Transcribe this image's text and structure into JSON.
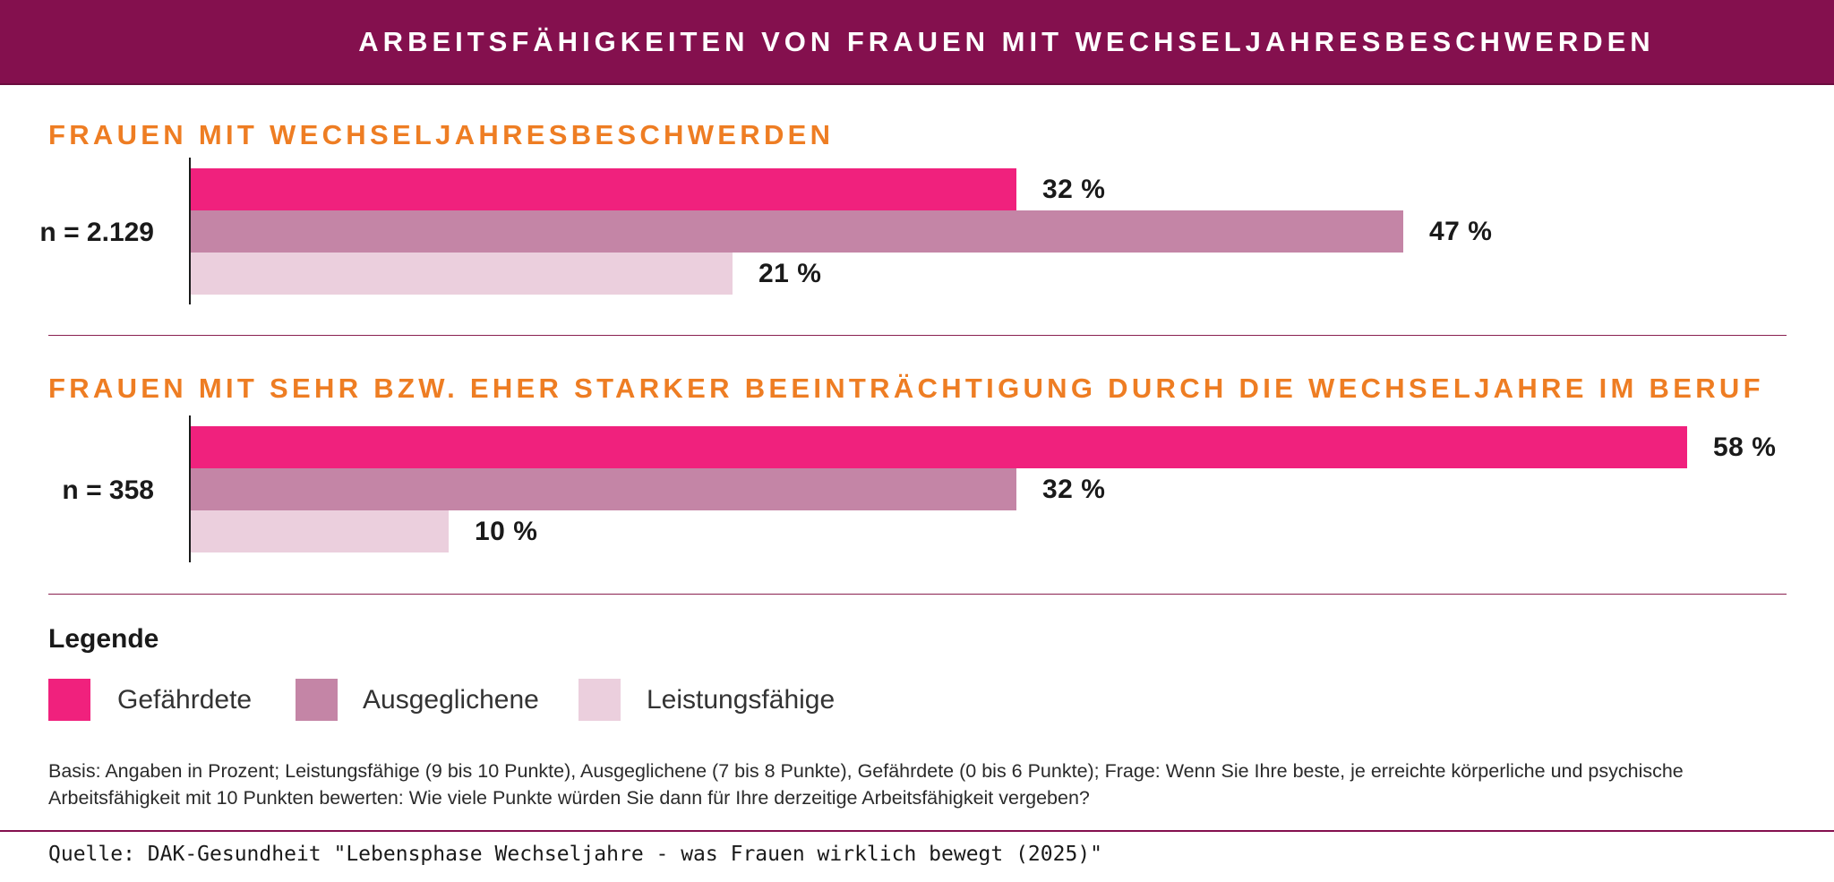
{
  "header": {
    "title": "ARBEITSFÄHIGKEITEN VON FRAUEN MIT WECHSELJAHRESBESCHWERDEN"
  },
  "colors": {
    "header_bg": "#84104e",
    "section_title": "#ee7d23",
    "gefaehrdete": "#f0217d",
    "ausgeglichene": "#c485a6",
    "leistungsfaehige": "#ebcfdd"
  },
  "chart_data": {
    "type": "bar",
    "orientation": "horizontal",
    "unit": "%",
    "groups": [
      {
        "title": "FRAUEN MIT WECHSELJAHRESBESCHWERDEN",
        "n_label": "n = 2.129",
        "bars": [
          {
            "series": "Gefährdete",
            "value": 32,
            "label": "32 %"
          },
          {
            "series": "Ausgeglichene",
            "value": 47,
            "label": "47 %"
          },
          {
            "series": "Leistungsfähige",
            "value": 21,
            "label": "21 %"
          }
        ]
      },
      {
        "title": "FRAUEN MIT SEHR BZW. EHER STARKER BEEINTRÄCHTIGUNG DURCH DIE WECHSELJAHRE IM BERUF",
        "n_label": "n = 358",
        "bars": [
          {
            "series": "Gefährdete",
            "value": 58,
            "label": "58 %"
          },
          {
            "series": "Ausgeglichene",
            "value": 32,
            "label": "32 %"
          },
          {
            "series": "Leistungsfähige",
            "value": 10,
            "label": "10 %"
          }
        ]
      }
    ],
    "legend": {
      "title": "Legende",
      "items": [
        {
          "name": "Gefährdete",
          "color": "#f0217d"
        },
        {
          "name": "Ausgeglichene",
          "color": "#c485a6"
        },
        {
          "name": "Leistungsfähige",
          "color": "#ebcfdd"
        }
      ]
    }
  },
  "footnote": {
    "basis": "Basis: Angaben in Prozent; Leistungsfähige (9 bis 10 Punkte), Ausgeglichene (7 bis 8 Punkte), Gefährdete (0 bis 6 Punkte); Frage: Wenn Sie Ihre beste, je erreichte körperliche und psychische Arbeitsfähigkeit mit 10 Punkten bewerten: Wie viele Punkte würden Sie dann für Ihre derzeitige Arbeitsfähigkeit vergeben?",
    "source": "Quelle: DAK-Gesundheit \"Lebensphase Wechseljahre - was Frauen wirklich bewegt (2025)\""
  }
}
